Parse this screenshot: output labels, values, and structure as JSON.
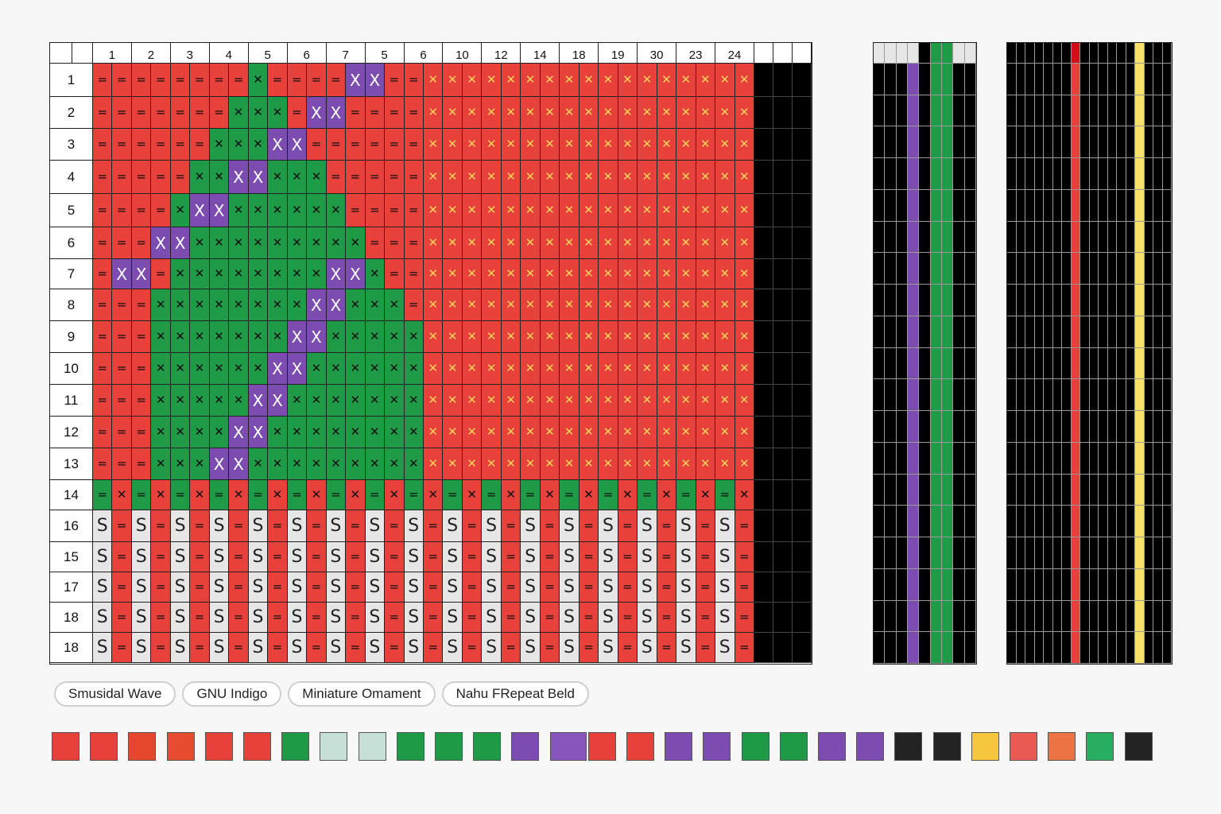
{
  "colors": {
    "red": "#e8403a",
    "green": "#1f9b48",
    "purple": "#7d4cb0",
    "white": "#e6e6e6",
    "orange": "#e85a2a",
    "black": "#000000",
    "yellow": "#f7e169",
    "grid_line": "#222222"
  },
  "main_grid": {
    "column_labels": [
      "",
      "",
      "1",
      "2",
      "3",
      "4",
      "5",
      "6",
      "7",
      "5",
      "6",
      "10",
      "12",
      "14",
      "18",
      "19",
      "30",
      "23",
      "24",
      "",
      "",
      ""
    ],
    "row_labels": [
      "1",
      "2",
      "3",
      "4",
      "5",
      "6",
      "7",
      "8",
      "9",
      "10",
      "11",
      "12",
      "13",
      "14",
      "16",
      "15",
      "17",
      "18",
      "18"
    ],
    "symbols": {
      "eq": "=",
      "cross": "✕",
      "big_x": "X",
      "s": "S"
    }
  },
  "strips": [
    {
      "name": "strip-one",
      "columns": [
        "black",
        "black",
        "black",
        "purple",
        "black",
        "green",
        "green",
        "black",
        "black"
      ],
      "header": [
        "white",
        "white",
        "white",
        "white",
        "black",
        "green",
        "green",
        "white",
        "white"
      ],
      "rows": 19
    },
    {
      "name": "strip-two",
      "columns": [
        "black",
        "black",
        "black",
        "black",
        "black",
        "black",
        "black",
        "black",
        "black",
        "black",
        "black",
        "black",
        "black",
        "black",
        "black",
        "black",
        "black",
        "black"
      ],
      "red_column": 7,
      "yellow_column": 14,
      "header_red": 7,
      "rows": 19
    }
  ],
  "tabs": [
    {
      "label": "Smusidal Wave"
    },
    {
      "label": "GNU Indigo"
    },
    {
      "label": "Miniature Omament"
    },
    {
      "label": "Nahu FRepeat Beld"
    }
  ],
  "palette": [
    "#e8403a",
    "#e8403a",
    "#e5472d",
    "#e84c2f",
    "#e8403a",
    "#e8403a",
    "#1f9b48",
    "#c7e0d7",
    "#c7e0d7",
    "#1f9b48",
    "#1f9b48",
    "#1f9b48",
    "#7d4cb0",
    "#8756bd",
    "#e8403a",
    "#e8403a",
    "#7d4cb0",
    "#7d4cb0",
    "#1f9b48",
    "#1f9b48",
    "#7d4cb0",
    "#7d4cb0",
    "#232323",
    "#232323",
    "#f6c73e",
    "#e95b52",
    "#ec7444",
    "#27ae61",
    "#232323"
  ]
}
